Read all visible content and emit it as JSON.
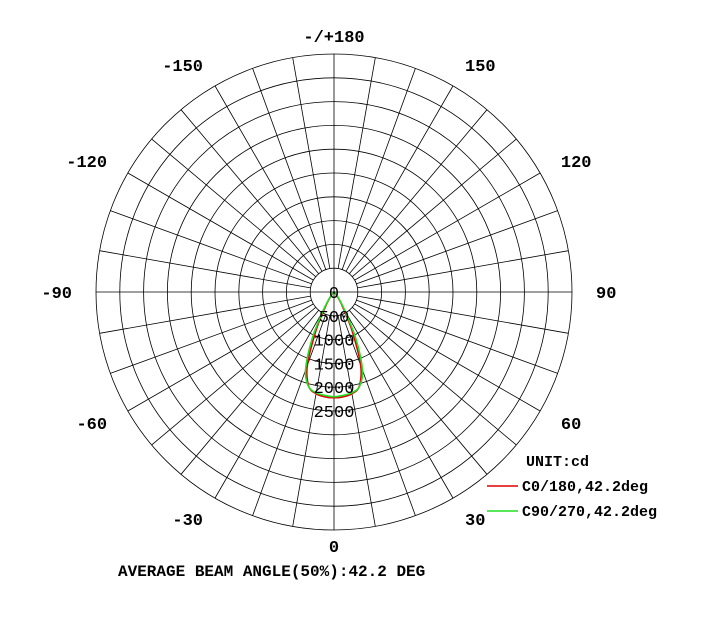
{
  "chart_data": {
    "type": "polar",
    "unit_label": "UNIT:cd",
    "footer": "AVERAGE BEAM ANGLE(50%):42.2 DEG",
    "angle_labels": [
      {
        "deg": 0,
        "text": "0"
      },
      {
        "deg": 30,
        "text": "30"
      },
      {
        "deg": 60,
        "text": "60"
      },
      {
        "deg": 90,
        "text": "90"
      },
      {
        "deg": 120,
        "text": "120"
      },
      {
        "deg": 150,
        "text": "150"
      },
      {
        "deg": 180,
        "text": "-/+180"
      },
      {
        "deg": -150,
        "text": "-150"
      },
      {
        "deg": -120,
        "text": "-120"
      },
      {
        "deg": -90,
        "text": "-90"
      },
      {
        "deg": -60,
        "text": "-60"
      },
      {
        "deg": -30,
        "text": "-30"
      }
    ],
    "ring_labels": [
      "0",
      "500",
      "1000",
      "1500",
      "2000",
      "2500"
    ],
    "rings": [
      500,
      1000,
      1500,
      2000,
      2500,
      3000,
      3500,
      4000,
      4500,
      5000
    ],
    "rmax": 5000,
    "spoke_step_deg": 10,
    "series": [
      {
        "name": "C0/180,42.2deg",
        "color": "#e00000",
        "angles": [
          -90,
          -60,
          -40,
          -35,
          -30,
          -25,
          -20,
          -15,
          -10,
          -5,
          0,
          5,
          10,
          15,
          20,
          25,
          30,
          35,
          40,
          60,
          90
        ],
        "values": [
          0,
          0,
          60,
          160,
          380,
          900,
          1640,
          2050,
          2170,
          2210,
          2220,
          2210,
          2170,
          2050,
          1640,
          900,
          380,
          160,
          60,
          0,
          0
        ]
      },
      {
        "name": "C90/270,42.2deg",
        "color": "#22e022",
        "angles": [
          -90,
          -60,
          -40,
          -35,
          -30,
          -25,
          -20,
          -15,
          -10,
          -5,
          0,
          5,
          10,
          15,
          20,
          25,
          30,
          35,
          40,
          60,
          90
        ],
        "values": [
          0,
          0,
          80,
          200,
          480,
          1100,
          1750,
          2060,
          2150,
          2180,
          2200,
          2180,
          2150,
          2060,
          1750,
          1100,
          480,
          200,
          80,
          0,
          0
        ]
      }
    ],
    "colors": {
      "grid": "#000000",
      "background": "#ffffff"
    }
  }
}
